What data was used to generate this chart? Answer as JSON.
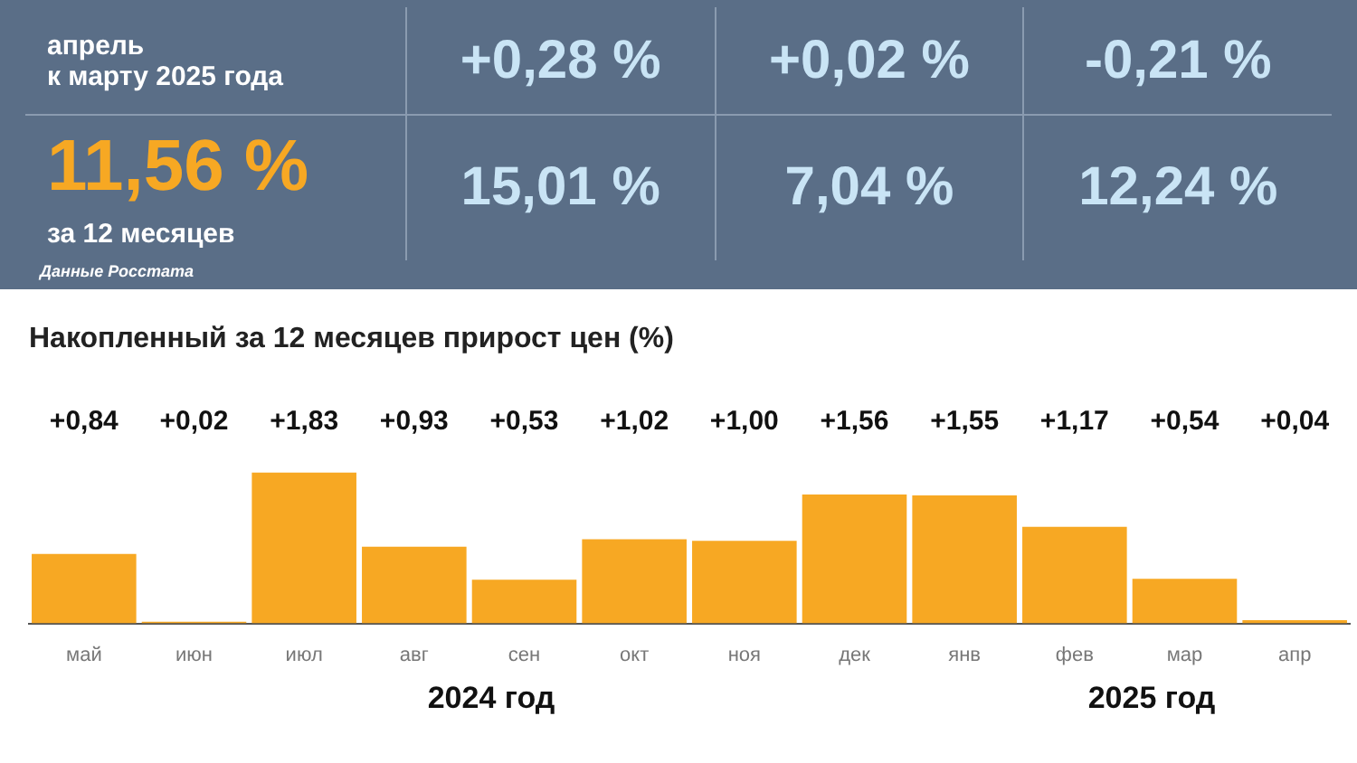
{
  "chart_data": [
    {
      "type": "other",
      "annotations": [
        "апрель\nк марту 2025 года",
        "+0,28 %",
        "+0,02 %",
        "-0,21 %",
        "11,56 %",
        "за 12 месяцев",
        "15,01 %",
        "7,04 %",
        "12,24 %",
        "Данные Росстата"
      ]
    },
    {
      "type": "bar",
      "title": "Накопленный за 12 месяцев прирост цен (%)",
      "categories": [
        "май",
        "июн",
        "июл",
        "авг",
        "сен",
        "окт",
        "ноя",
        "дек",
        "янв",
        "фев",
        "мар",
        "апр"
      ],
      "values": [
        0.84,
        0.02,
        1.83,
        0.93,
        0.53,
        1.02,
        1.0,
        1.56,
        1.55,
        1.17,
        0.54,
        0.04
      ],
      "value_labels": [
        "+0,84",
        "+0,02",
        "+1,83",
        "+0,93",
        "+0,53",
        "+1,02",
        "+1,00",
        "+1,56",
        "+1,55",
        "+1,17",
        "+0,54",
        "+0,04"
      ],
      "color": "#f7a823",
      "annotations": [
        "2024 год",
        "2025 год"
      ]
    }
  ]
}
